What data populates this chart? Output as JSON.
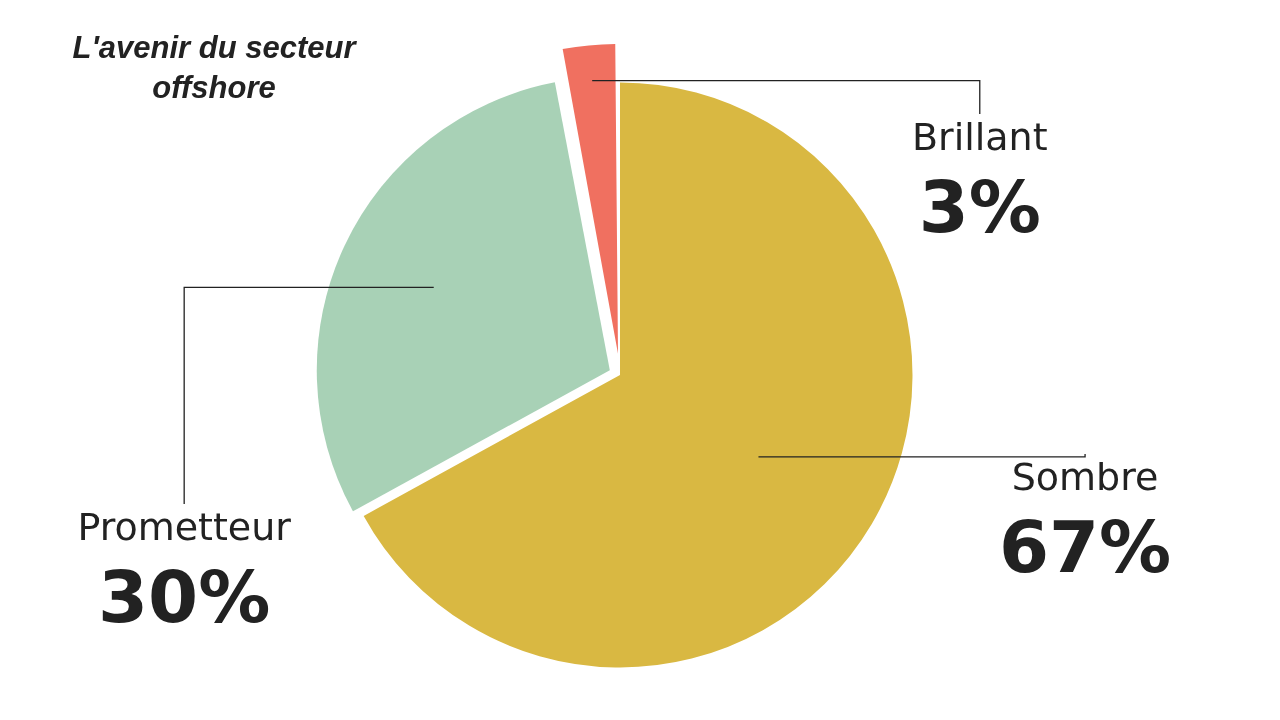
{
  "chart_data": {
    "type": "pie",
    "title": "L'avenir du secteur offshore",
    "categories": [
      "Sombre",
      "Prometteur",
      "Brillant"
    ],
    "values": [
      67,
      30,
      3
    ],
    "colors": [
      "#d9b842",
      "#a8d1b6",
      "#f07060"
    ],
    "value_labels": [
      "67%",
      "30%",
      "3%"
    ]
  }
}
